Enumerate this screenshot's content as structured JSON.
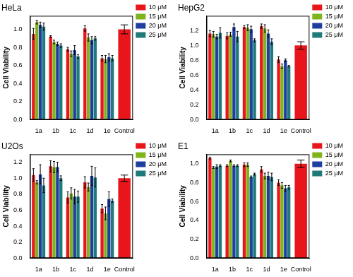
{
  "chart_data": [
    {
      "type": "bar",
      "title": "HeLa",
      "y_label": "Cell Viability",
      "categories": [
        "1a",
        "1b",
        "1c",
        "1d",
        "1e",
        "Control"
      ],
      "series": [
        {
          "name": "10 μM",
          "color": "#e8161b",
          "values": [
            0.95,
            0.92,
            0.78,
            1.01,
            0.68,
            1.0
          ],
          "errors": [
            0.06,
            0.01,
            0.02,
            0.03,
            0.03,
            0.05
          ]
        },
        {
          "name": "15 μM",
          "color": "#7fb51a",
          "values": [
            1.08,
            0.86,
            0.73,
            0.91,
            0.67,
            null
          ],
          "errors": [
            0.02,
            0.02,
            0.03,
            0.04,
            0.04,
            null
          ]
        },
        {
          "name": "20 μM",
          "color": "#1f3f9f",
          "values": [
            1.05,
            0.84,
            0.77,
            0.88,
            0.69,
            null
          ],
          "errors": [
            0.03,
            0.02,
            0.05,
            0.04,
            0.04,
            null
          ]
        },
        {
          "name": "25 μM",
          "color": "#1f7a7a",
          "values": [
            1.03,
            0.82,
            0.7,
            0.9,
            0.68,
            null
          ],
          "errors": [
            0.04,
            0.02,
            0.02,
            0.02,
            0.03,
            null
          ]
        }
      ],
      "ylim": [
        0,
        1.15
      ],
      "yticks": [
        {
          "value": 0,
          "label": "0.0"
        },
        0.2,
        0.4,
        0.6,
        0.8,
        {
          "value": 1,
          "label": "1.0"
        }
      ],
      "grid": false,
      "legend": "right"
    },
    {
      "type": "bar",
      "title": "HepG2",
      "y_label": "Cell Viability",
      "categories": [
        "1a",
        "1b",
        "1c",
        "1d",
        "1e",
        "Control"
      ],
      "series": [
        {
          "name": "10 μM",
          "color": "#e8161b",
          "values": [
            1.16,
            1.13,
            1.25,
            1.26,
            0.81,
            1.0
          ],
          "errors": [
            0.04,
            0.04,
            0.02,
            0.03,
            0.04,
            0.05
          ]
        },
        {
          "name": "15 μM",
          "color": "#7fb51a",
          "values": [
            1.15,
            1.15,
            1.24,
            1.23,
            0.72,
            null
          ],
          "errors": [
            0.04,
            0.03,
            0.04,
            0.05,
            0.03,
            null
          ]
        },
        {
          "name": "20 μM",
          "color": "#1f3f9f",
          "values": [
            1.12,
            1.25,
            1.22,
            1.16,
            0.8,
            null
          ],
          "errors": [
            0.03,
            0.04,
            0.04,
            0.05,
            0.02,
            null
          ]
        },
        {
          "name": "25 μM",
          "color": "#1f7a7a",
          "values": [
            1.17,
            1.12,
            1.07,
            1.05,
            0.72,
            null
          ],
          "errors": [
            0.07,
            0.07,
            0.02,
            0.04,
            0.01,
            null
          ]
        }
      ],
      "ylim": [
        0,
        1.4
      ],
      "yticks": [
        {
          "value": 0,
          "label": "0.0"
        },
        0.2,
        0.4,
        0.6,
        0.8,
        {
          "value": 1,
          "label": "1.0"
        },
        1.2
      ],
      "grid": false,
      "legend": "right"
    },
    {
      "type": "bar",
      "title": "U2Os",
      "y_label": "Cell Viability",
      "categories": [
        "1a",
        "1b",
        "1c",
        "1d",
        "1e",
        "Control"
      ],
      "series": [
        {
          "name": "10 μM",
          "color": "#e8161b",
          "values": [
            1.04,
            1.15,
            0.76,
            0.95,
            0.62,
            1.0
          ],
          "errors": [
            0.08,
            0.07,
            0.07,
            0.07,
            0.05,
            0.04
          ]
        },
        {
          "name": "15 μM",
          "color": "#7fb51a",
          "values": [
            0.95,
            1.14,
            0.81,
            0.89,
            0.56,
            null
          ],
          "errors": [
            0.02,
            0.07,
            0.07,
            0.05,
            0.08,
            null
          ]
        },
        {
          "name": "20 μM",
          "color": "#1f3f9f",
          "values": [
            1.05,
            1.14,
            0.77,
            1.03,
            0.74,
            null
          ],
          "errors": [
            0.12,
            0.06,
            0.09,
            0.12,
            0.09,
            null
          ]
        },
        {
          "name": "25 μM",
          "color": "#1f7a7a",
          "values": [
            0.91,
            1.0,
            0.77,
            1.01,
            0.72,
            null
          ],
          "errors": [
            0.09,
            0.03,
            0.07,
            0.12,
            0.02,
            null
          ]
        }
      ],
      "ylim": [
        0,
        1.3
      ],
      "yticks": [
        {
          "value": 0,
          "label": "0.0"
        },
        0.2,
        0.4,
        0.6,
        0.8,
        {
          "value": 1,
          "label": "1.0"
        },
        1.2
      ],
      "grid": false,
      "legend": "right"
    },
    {
      "type": "bar",
      "title": "E1",
      "y_label": "Cell Viability",
      "categories": [
        "1a",
        "1b",
        "1c",
        "1d",
        "1e",
        "Control"
      ],
      "series": [
        {
          "name": "10 μM",
          "color": "#e8161b",
          "values": [
            1.06,
            0.98,
            0.99,
            0.94,
            0.8,
            1.0
          ],
          "errors": [
            0.01,
            0.01,
            0.02,
            0.03,
            0.03,
            0.04
          ]
        },
        {
          "name": "15 μM",
          "color": "#7fb51a",
          "values": [
            0.96,
            1.03,
            0.99,
            0.87,
            0.77,
            null
          ],
          "errors": [
            0.01,
            0.01,
            0.02,
            0.03,
            0.03,
            null
          ]
        },
        {
          "name": "20 μM",
          "color": "#1f3f9f",
          "values": [
            0.97,
            0.98,
            0.86,
            0.87,
            0.74,
            null
          ],
          "errors": [
            0.02,
            0.01,
            0.01,
            0.04,
            0.03,
            null
          ]
        },
        {
          "name": "25 μM",
          "color": "#1f7a7a",
          "values": [
            0.98,
            0.98,
            0.89,
            0.86,
            0.75,
            null
          ],
          "errors": [
            0.01,
            0.01,
            0.01,
            0.04,
            0.02,
            null
          ]
        }
      ],
      "ylim": [
        0,
        1.1
      ],
      "yticks": [
        {
          "value": 0,
          "label": "0.0"
        },
        0.2,
        0.4,
        0.6,
        0.8,
        {
          "value": 1,
          "label": "1.0"
        }
      ],
      "grid": false,
      "legend": "right"
    }
  ]
}
